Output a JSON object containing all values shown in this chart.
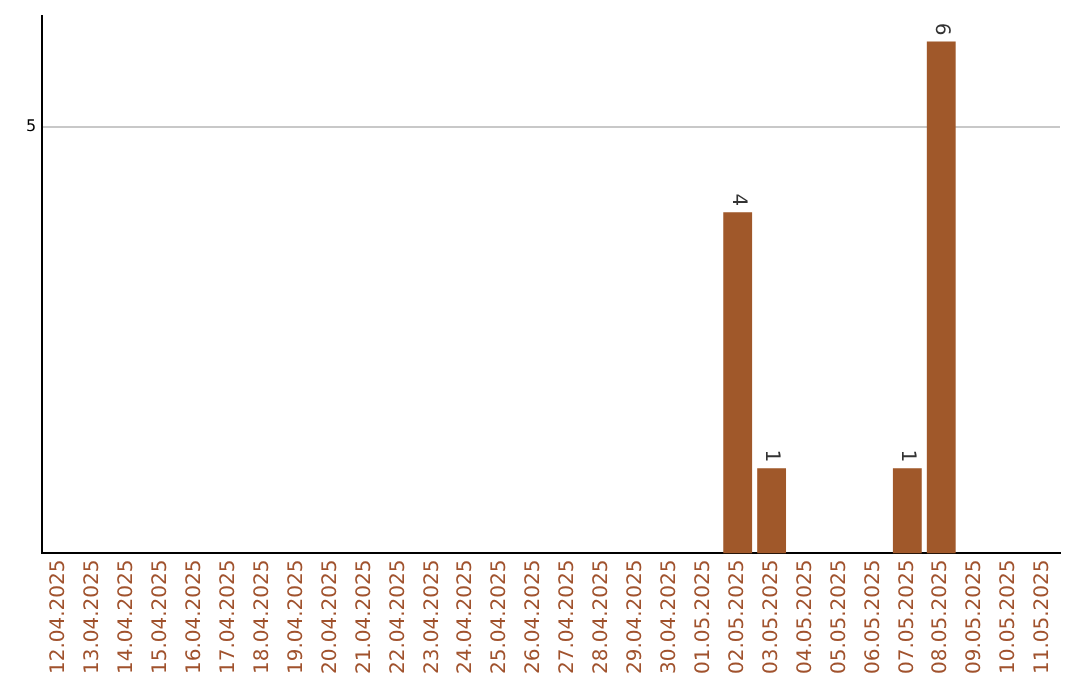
{
  "chart_data": {
    "type": "bar",
    "categories": [
      "12.04.2025",
      "13.04.2025",
      "14.04.2025",
      "15.04.2025",
      "16.04.2025",
      "17.04.2025",
      "18.04.2025",
      "19.04.2025",
      "20.04.2025",
      "21.04.2025",
      "22.04.2025",
      "23.04.2025",
      "24.04.2025",
      "25.04.2025",
      "26.04.2025",
      "27.04.2025",
      "28.04.2025",
      "29.04.2025",
      "30.04.2025",
      "01.05.2025",
      "02.05.2025",
      "03.05.2025",
      "04.05.2025",
      "05.05.2025",
      "06.05.2025",
      "07.05.2025",
      "08.05.2025",
      "09.05.2025",
      "10.05.2025",
      "11.05.2025"
    ],
    "values": [
      null,
      null,
      null,
      null,
      null,
      null,
      null,
      null,
      null,
      null,
      null,
      null,
      null,
      null,
      null,
      null,
      null,
      null,
      null,
      null,
      4,
      1,
      null,
      null,
      null,
      1,
      6,
      null,
      null,
      null
    ],
    "data_labels": true,
    "color": "#a0582a",
    "ylim": [
      0,
      6.3
    ],
    "yticks": [
      5
    ],
    "grid": "y",
    "legend": false
  }
}
